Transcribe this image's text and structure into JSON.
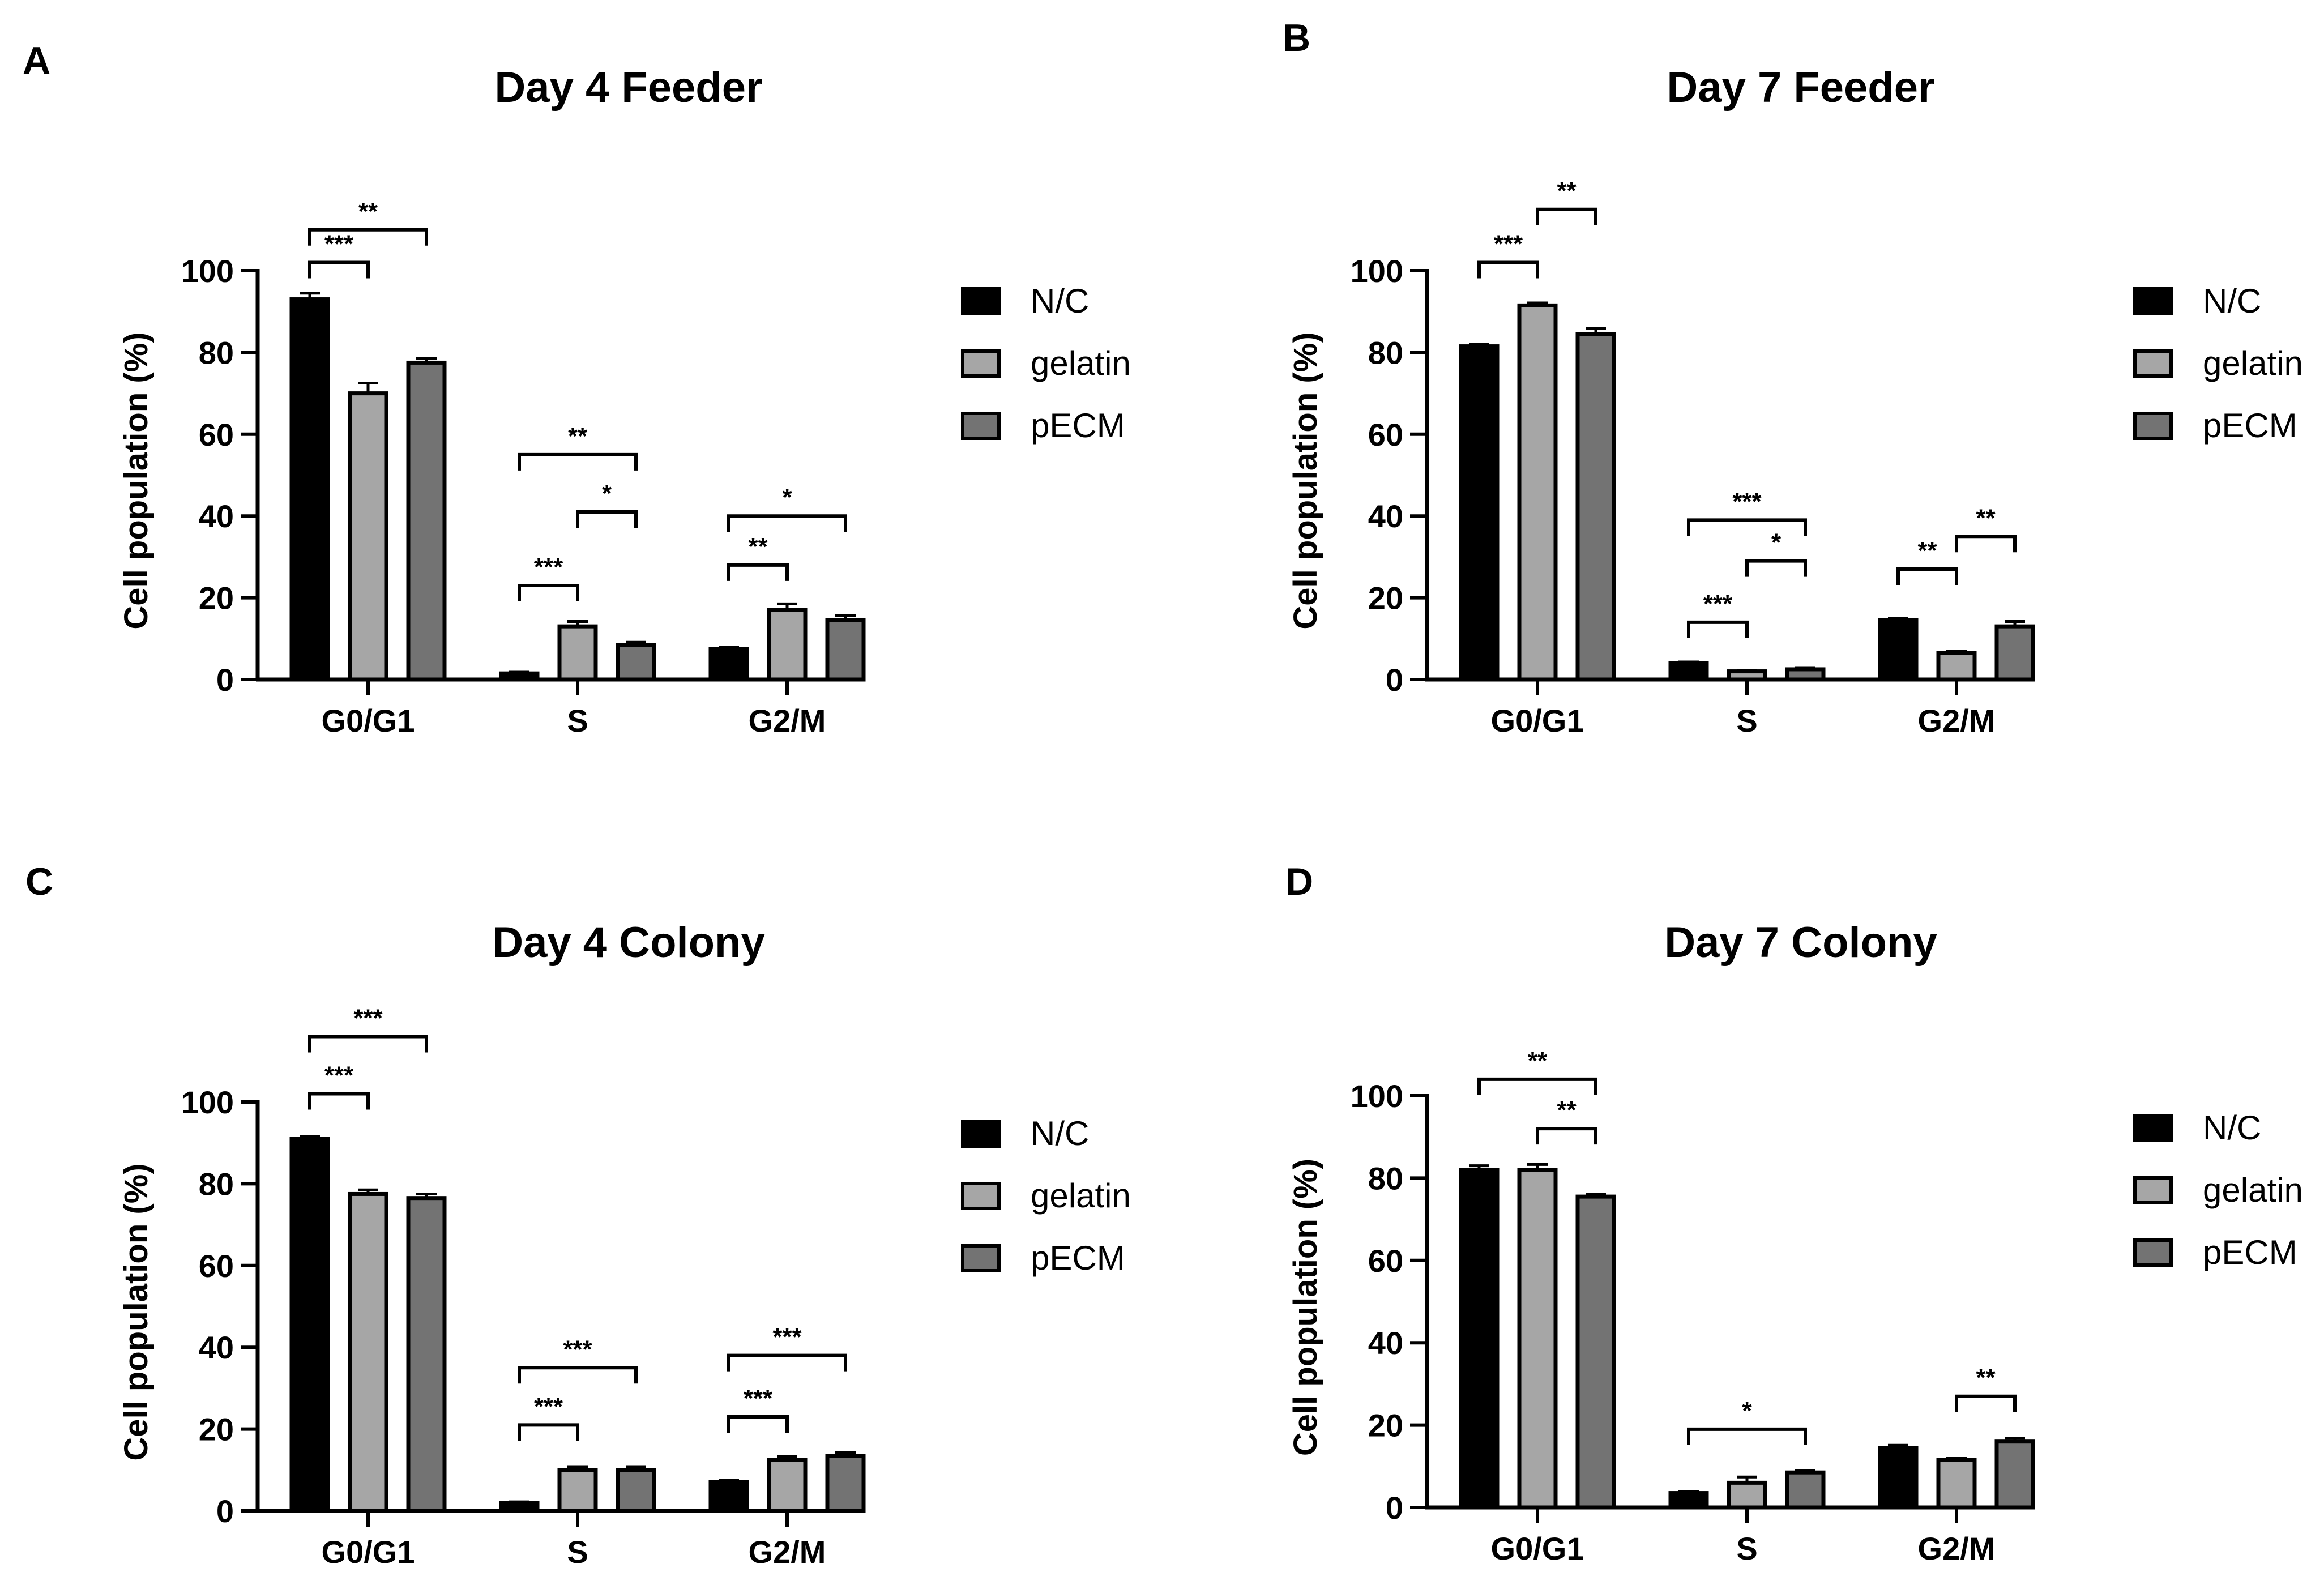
{
  "chart_data": [
    {
      "type": "bar",
      "panel": "A",
      "title": "Day 4 Feeder",
      "xlabel": "",
      "ylabel": "Cell population (%)",
      "ylim": [
        0,
        100
      ],
      "yticks": [
        0,
        20,
        40,
        60,
        80,
        100
      ],
      "categories": [
        "G0/G1",
        "S",
        "G2/M"
      ],
      "series": [
        {
          "name": "N/C",
          "color": "#000000",
          "values": [
            93,
            1.5,
            7.5
          ],
          "errors": [
            1.5,
            0.3,
            0.4
          ]
        },
        {
          "name": "gelatin",
          "color": "#a6a6a6",
          "values": [
            70,
            13,
            17
          ],
          "errors": [
            2.5,
            1.2,
            1.5
          ]
        },
        {
          "name": "pECM",
          "color": "#737373",
          "values": [
            77.5,
            8.5,
            14.5
          ],
          "errors": [
            1,
            0.6,
            1.2
          ]
        }
      ],
      "significance": [
        {
          "category": 0,
          "from": 0,
          "to": 2,
          "label": "**",
          "level": 110
        },
        {
          "category": 0,
          "from": 0,
          "to": 1,
          "label": "***",
          "level": 102
        },
        {
          "category": 1,
          "from": 0,
          "to": 2,
          "label": "**",
          "level": 55
        },
        {
          "category": 1,
          "from": 1,
          "to": 2,
          "label": "*",
          "level": 41
        },
        {
          "category": 1,
          "from": 0,
          "to": 1,
          "label": "***",
          "level": 23
        },
        {
          "category": 2,
          "from": 0,
          "to": 2,
          "label": "*",
          "level": 40
        },
        {
          "category": 2,
          "from": 0,
          "to": 1,
          "label": "**",
          "level": 28
        }
      ]
    },
    {
      "type": "bar",
      "panel": "B",
      "title": "Day 7 Feeder",
      "xlabel": "",
      "ylabel": "Cell population (%)",
      "ylim": [
        0,
        100
      ],
      "yticks": [
        0,
        20,
        40,
        60,
        80,
        100
      ],
      "categories": [
        "G0/G1",
        "S",
        "G2/M"
      ],
      "series": [
        {
          "name": "N/C",
          "color": "#000000",
          "values": [
            81.5,
            4,
            14.5
          ],
          "errors": [
            0.5,
            0.3,
            0.4
          ]
        },
        {
          "name": "gelatin",
          "color": "#a6a6a6",
          "values": [
            91.5,
            2,
            6.5
          ],
          "errors": [
            0.6,
            0.2,
            0.4
          ]
        },
        {
          "name": "pECM",
          "color": "#737373",
          "values": [
            84.5,
            2.5,
            13
          ],
          "errors": [
            1.4,
            0.4,
            1.2
          ]
        }
      ],
      "significance": [
        {
          "category": 0,
          "from": 1,
          "to": 2,
          "label": "**",
          "level": 115
        },
        {
          "category": 0,
          "from": 0,
          "to": 1,
          "label": "***",
          "level": 102
        },
        {
          "category": 1,
          "from": 0,
          "to": 2,
          "label": "***",
          "level": 39
        },
        {
          "category": 1,
          "from": 1,
          "to": 2,
          "label": "*",
          "level": 29
        },
        {
          "category": 1,
          "from": 0,
          "to": 1,
          "label": "***",
          "level": 14
        },
        {
          "category": 2,
          "from": 1,
          "to": 2,
          "label": "**",
          "level": 35
        },
        {
          "category": 2,
          "from": 0,
          "to": 1,
          "label": "**",
          "level": 27
        }
      ]
    },
    {
      "type": "bar",
      "panel": "C",
      "title": "Day 4 Colony",
      "xlabel": "",
      "ylabel": "Cell population (%)",
      "ylim": [
        0,
        100
      ],
      "yticks": [
        0,
        20,
        40,
        60,
        80,
        100
      ],
      "categories": [
        "G0/G1",
        "S",
        "G2/M"
      ],
      "series": [
        {
          "name": "N/C",
          "color": "#000000",
          "values": [
            91,
            2,
            7
          ],
          "errors": [
            0.6,
            0.2,
            0.5
          ]
        },
        {
          "name": "gelatin",
          "color": "#a6a6a6",
          "values": [
            77.5,
            10,
            12.5
          ],
          "errors": [
            1,
            0.8,
            0.8
          ]
        },
        {
          "name": "pECM",
          "color": "#737373",
          "values": [
            76.5,
            10,
            13.5
          ],
          "errors": [
            1,
            0.8,
            0.8
          ]
        }
      ],
      "significance": [
        {
          "category": 0,
          "from": 0,
          "to": 2,
          "label": "***",
          "level": 116
        },
        {
          "category": 0,
          "from": 0,
          "to": 1,
          "label": "***",
          "level": 102
        },
        {
          "category": 1,
          "from": 0,
          "to": 2,
          "label": "***",
          "level": 35
        },
        {
          "category": 1,
          "from": 0,
          "to": 1,
          "label": "***",
          "level": 21
        },
        {
          "category": 2,
          "from": 0,
          "to": 2,
          "label": "***",
          "level": 38
        },
        {
          "category": 2,
          "from": 0,
          "to": 1,
          "label": "***",
          "level": 23
        }
      ]
    },
    {
      "type": "bar",
      "panel": "D",
      "title": "Day 7 Colony",
      "xlabel": "",
      "ylabel": "Cell population (%)",
      "ylim": [
        0,
        100
      ],
      "yticks": [
        0,
        20,
        40,
        60,
        80,
        100
      ],
      "categories": [
        "G0/G1",
        "S",
        "G2/M"
      ],
      "series": [
        {
          "name": "N/C",
          "color": "#000000",
          "values": [
            82,
            3.5,
            14.5
          ],
          "errors": [
            1,
            0.3,
            0.6
          ]
        },
        {
          "name": "gelatin",
          "color": "#a6a6a6",
          "values": [
            82,
            6,
            11.5
          ],
          "errors": [
            1.3,
            1.4,
            0.4
          ]
        },
        {
          "name": "pECM",
          "color": "#737373",
          "values": [
            75.5,
            8.5,
            16
          ],
          "errors": [
            0.6,
            0.5,
            0.8
          ]
        }
      ],
      "significance": [
        {
          "category": 0,
          "from": 0,
          "to": 2,
          "label": "**",
          "level": 104
        },
        {
          "category": 0,
          "from": 1,
          "to": 2,
          "label": "**",
          "level": 92
        },
        {
          "category": 1,
          "from": 0,
          "to": 2,
          "label": "*",
          "level": 19
        },
        {
          "category": 2,
          "from": 1,
          "to": 2,
          "label": "**",
          "level": 27
        }
      ]
    }
  ]
}
